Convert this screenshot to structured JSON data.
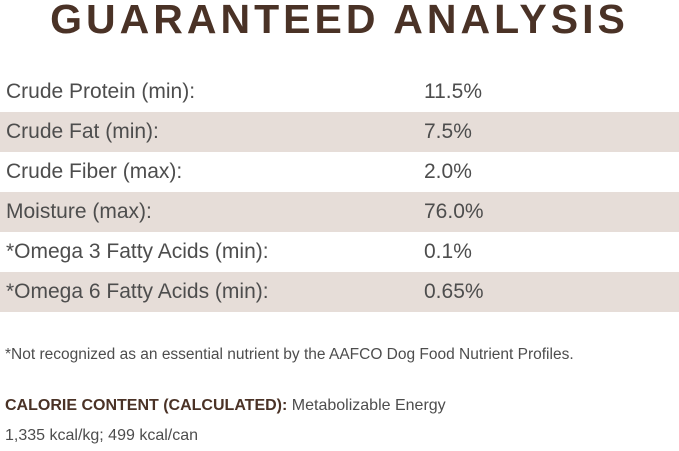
{
  "header": {
    "title": "GUARANTEED ANALYSIS"
  },
  "table": {
    "rows": [
      [
        "Crude Protein (min):",
        "11.5%"
      ],
      [
        "Crude Fat (min):",
        "7.5%"
      ],
      [
        "Crude Fiber (max):",
        "2.0%"
      ],
      [
        "Moisture (max):",
        "76.0%"
      ],
      [
        "*Omega 3 Fatty Acids (min):",
        "0.1%"
      ],
      [
        "*Omega 6 Fatty Acids (min):",
        "0.65%"
      ]
    ]
  },
  "footnote": "*Not recognized as an essential nutrient by the AAFCO Dog Food Nutrient Profiles.",
  "calorie": {
    "label": "CALORIE CONTENT (CALCULATED):",
    "text": "Metabolizable Energy",
    "values": "1,335 kcal/kg; 499 kcal/can"
  }
}
